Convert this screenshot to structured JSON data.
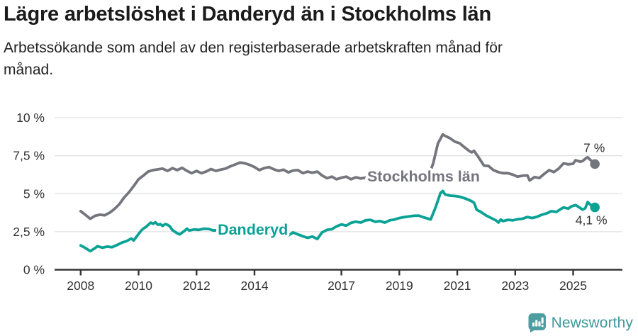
{
  "chart_data": {
    "type": "line",
    "title": "Lägre arbetslöshet i Danderyd än i Stockholms län",
    "subtitle": "Arbetssökande som andel av den registerbaserade arbetskraften månad för månad.",
    "unit": "%",
    "grid": true,
    "legend_position": "inline",
    "x_axis": {
      "range": [
        2007.1,
        2026.7
      ],
      "tick_values": [
        2008,
        2010,
        2012,
        2014,
        2017,
        2019,
        2021,
        2023,
        2025
      ],
      "tick_labels": [
        "2008",
        "2010",
        "2012",
        "2014",
        "2017",
        "2019",
        "2021",
        "2023",
        "2025"
      ]
    },
    "y_axis": {
      "range": [
        0,
        10
      ],
      "tick_values": [
        0,
        2.5,
        5,
        7.5,
        10
      ],
      "tick_labels": [
        "0 %",
        "2,5 %",
        "5 %",
        "7,5 %",
        "10 %"
      ]
    },
    "colors": {
      "axis_text": "#333333",
      "gridline": "#e0e0e0",
      "axis_line": "#333333"
    },
    "series": [
      {
        "name": "Stockholms län",
        "color": "#75757e",
        "end_label": "7 %",
        "end_label_offset": [
          -1,
          -17
        ],
        "name_label_at": {
          "x": 2017.89,
          "y": 5.8
        },
        "points": [
          [
            2008.0,
            3.85
          ],
          [
            2008.17,
            3.6
          ],
          [
            2008.33,
            3.35
          ],
          [
            2008.5,
            3.55
          ],
          [
            2008.67,
            3.62
          ],
          [
            2008.83,
            3.58
          ],
          [
            2009.0,
            3.75
          ],
          [
            2009.17,
            4.0
          ],
          [
            2009.33,
            4.3
          ],
          [
            2009.5,
            4.75
          ],
          [
            2009.67,
            5.1
          ],
          [
            2009.83,
            5.5
          ],
          [
            2010.0,
            5.95
          ],
          [
            2010.17,
            6.2
          ],
          [
            2010.33,
            6.45
          ],
          [
            2010.5,
            6.55
          ],
          [
            2010.67,
            6.6
          ],
          [
            2010.83,
            6.65
          ],
          [
            2011.0,
            6.5
          ],
          [
            2011.17,
            6.68
          ],
          [
            2011.33,
            6.55
          ],
          [
            2011.5,
            6.7
          ],
          [
            2011.67,
            6.5
          ],
          [
            2011.83,
            6.35
          ],
          [
            2012.0,
            6.5
          ],
          [
            2012.17,
            6.35
          ],
          [
            2012.33,
            6.45
          ],
          [
            2012.5,
            6.62
          ],
          [
            2012.67,
            6.5
          ],
          [
            2012.83,
            6.58
          ],
          [
            2013.0,
            6.65
          ],
          [
            2013.17,
            6.8
          ],
          [
            2013.33,
            6.92
          ],
          [
            2013.5,
            7.05
          ],
          [
            2013.67,
            7.0
          ],
          [
            2013.83,
            6.9
          ],
          [
            2014.0,
            6.75
          ],
          [
            2014.17,
            6.55
          ],
          [
            2014.33,
            6.68
          ],
          [
            2014.5,
            6.75
          ],
          [
            2014.67,
            6.6
          ],
          [
            2014.83,
            6.5
          ],
          [
            2015.0,
            6.58
          ],
          [
            2015.17,
            6.4
          ],
          [
            2015.33,
            6.52
          ],
          [
            2015.5,
            6.55
          ],
          [
            2015.67,
            6.35
          ],
          [
            2015.83,
            6.45
          ],
          [
            2016.0,
            6.38
          ],
          [
            2016.17,
            6.45
          ],
          [
            2016.33,
            6.2
          ],
          [
            2016.5,
            6.02
          ],
          [
            2016.67,
            6.12
          ],
          [
            2016.83,
            5.95
          ],
          [
            2017.0,
            6.05
          ],
          [
            2017.17,
            6.12
          ],
          [
            2017.33,
            5.95
          ],
          [
            2017.5,
            6.08
          ],
          [
            2017.67,
            6.0
          ],
          [
            2017.83,
            6.05
          ],
          [
            2018.0,
            6.0
          ],
          [
            2018.25,
            5.92
          ],
          [
            2018.5,
            5.95
          ],
          [
            2018.75,
            5.9
          ],
          [
            2019.0,
            5.92
          ],
          [
            2019.25,
            5.85
          ],
          [
            2019.5,
            5.9
          ],
          [
            2019.75,
            5.98
          ],
          [
            2020.0,
            6.1
          ],
          [
            2020.17,
            7.0
          ],
          [
            2020.33,
            8.3
          ],
          [
            2020.5,
            8.9
          ],
          [
            2020.58,
            8.8
          ],
          [
            2020.75,
            8.65
          ],
          [
            2020.92,
            8.42
          ],
          [
            2021.08,
            8.32
          ],
          [
            2021.25,
            8.05
          ],
          [
            2021.42,
            7.8
          ],
          [
            2021.5,
            7.72
          ],
          [
            2021.58,
            7.82
          ],
          [
            2021.75,
            7.35
          ],
          [
            2021.92,
            6.85
          ],
          [
            2022.08,
            6.82
          ],
          [
            2022.25,
            6.55
          ],
          [
            2022.42,
            6.42
          ],
          [
            2022.58,
            6.35
          ],
          [
            2022.75,
            6.35
          ],
          [
            2022.92,
            6.25
          ],
          [
            2023.08,
            6.12
          ],
          [
            2023.25,
            6.18
          ],
          [
            2023.42,
            6.2
          ],
          [
            2023.5,
            5.87
          ],
          [
            2023.67,
            6.1
          ],
          [
            2023.83,
            6.03
          ],
          [
            2024.0,
            6.3
          ],
          [
            2024.17,
            6.55
          ],
          [
            2024.33,
            6.42
          ],
          [
            2024.5,
            6.65
          ],
          [
            2024.67,
            7.0
          ],
          [
            2024.83,
            6.93
          ],
          [
            2025.0,
            6.97
          ],
          [
            2025.08,
            7.2
          ],
          [
            2025.25,
            7.1
          ],
          [
            2025.33,
            7.15
          ],
          [
            2025.42,
            7.3
          ],
          [
            2025.5,
            7.4
          ],
          [
            2025.58,
            7.25
          ],
          [
            2025.75,
            6.95
          ]
        ]
      },
      {
        "name": "Danderyd",
        "color": "#0ba296",
        "end_label": "4,1 %",
        "end_label_offset": [
          -5,
          24
        ],
        "name_label_at": {
          "x": 2012.73,
          "y": 2.31
        },
        "points": [
          [
            2008.0,
            1.6
          ],
          [
            2008.17,
            1.42
          ],
          [
            2008.33,
            1.22
          ],
          [
            2008.5,
            1.42
          ],
          [
            2008.58,
            1.55
          ],
          [
            2008.75,
            1.45
          ],
          [
            2008.92,
            1.52
          ],
          [
            2009.08,
            1.48
          ],
          [
            2009.25,
            1.62
          ],
          [
            2009.42,
            1.78
          ],
          [
            2009.58,
            1.88
          ],
          [
            2009.75,
            2.05
          ],
          [
            2009.83,
            1.92
          ],
          [
            2009.92,
            2.15
          ],
          [
            2010.08,
            2.55
          ],
          [
            2010.17,
            2.72
          ],
          [
            2010.25,
            2.8
          ],
          [
            2010.33,
            2.95
          ],
          [
            2010.42,
            3.1
          ],
          [
            2010.5,
            3.02
          ],
          [
            2010.58,
            3.12
          ],
          [
            2010.67,
            2.95
          ],
          [
            2010.75,
            3.0
          ],
          [
            2010.83,
            2.88
          ],
          [
            2010.92,
            3.0
          ],
          [
            2011.0,
            2.95
          ],
          [
            2011.08,
            2.85
          ],
          [
            2011.17,
            2.6
          ],
          [
            2011.33,
            2.4
          ],
          [
            2011.42,
            2.32
          ],
          [
            2011.58,
            2.55
          ],
          [
            2011.67,
            2.7
          ],
          [
            2011.75,
            2.58
          ],
          [
            2011.92,
            2.65
          ],
          [
            2012.08,
            2.62
          ],
          [
            2012.25,
            2.7
          ],
          [
            2012.42,
            2.68
          ],
          [
            2012.58,
            2.58
          ],
          [
            2012.83,
            2.62
          ],
          [
            2013.08,
            2.68
          ],
          [
            2013.33,
            2.7
          ],
          [
            2013.58,
            2.6
          ],
          [
            2013.83,
            2.55
          ],
          [
            2014.08,
            2.6
          ],
          [
            2014.33,
            2.52
          ],
          [
            2014.58,
            2.45
          ],
          [
            2014.83,
            2.42
          ],
          [
            2015.0,
            2.47
          ],
          [
            2015.17,
            2.25
          ],
          [
            2015.33,
            2.45
          ],
          [
            2015.5,
            2.32
          ],
          [
            2015.67,
            2.2
          ],
          [
            2015.83,
            2.1
          ],
          [
            2016.0,
            2.18
          ],
          [
            2016.17,
            2.02
          ],
          [
            2016.33,
            2.45
          ],
          [
            2016.5,
            2.62
          ],
          [
            2016.67,
            2.66
          ],
          [
            2016.83,
            2.85
          ],
          [
            2017.0,
            2.98
          ],
          [
            2017.17,
            2.9
          ],
          [
            2017.33,
            3.08
          ],
          [
            2017.5,
            3.16
          ],
          [
            2017.67,
            3.1
          ],
          [
            2017.83,
            3.25
          ],
          [
            2018.0,
            3.28
          ],
          [
            2018.17,
            3.15
          ],
          [
            2018.33,
            3.2
          ],
          [
            2018.5,
            3.1
          ],
          [
            2018.67,
            3.25
          ],
          [
            2018.83,
            3.3
          ],
          [
            2019.0,
            3.4
          ],
          [
            2019.17,
            3.46
          ],
          [
            2019.33,
            3.5
          ],
          [
            2019.5,
            3.55
          ],
          [
            2019.67,
            3.56
          ],
          [
            2019.83,
            3.45
          ],
          [
            2020.0,
            3.35
          ],
          [
            2020.08,
            3.3
          ],
          [
            2020.25,
            4.1
          ],
          [
            2020.42,
            5.05
          ],
          [
            2020.5,
            5.18
          ],
          [
            2020.58,
            4.95
          ],
          [
            2020.75,
            4.87
          ],
          [
            2020.92,
            4.85
          ],
          [
            2021.08,
            4.8
          ],
          [
            2021.25,
            4.7
          ],
          [
            2021.42,
            4.58
          ],
          [
            2021.5,
            4.5
          ],
          [
            2021.58,
            4.4
          ],
          [
            2021.67,
            3.95
          ],
          [
            2021.83,
            3.78
          ],
          [
            2022.0,
            3.56
          ],
          [
            2022.17,
            3.4
          ],
          [
            2022.33,
            3.25
          ],
          [
            2022.42,
            3.1
          ],
          [
            2022.5,
            3.3
          ],
          [
            2022.58,
            3.2
          ],
          [
            2022.75,
            3.28
          ],
          [
            2022.92,
            3.25
          ],
          [
            2023.08,
            3.32
          ],
          [
            2023.25,
            3.35
          ],
          [
            2023.42,
            3.47
          ],
          [
            2023.58,
            3.4
          ],
          [
            2023.75,
            3.48
          ],
          [
            2023.92,
            3.62
          ],
          [
            2024.08,
            3.7
          ],
          [
            2024.25,
            3.85
          ],
          [
            2024.42,
            3.8
          ],
          [
            2024.58,
            4.0
          ],
          [
            2024.67,
            4.1
          ],
          [
            2024.83,
            4.02
          ],
          [
            2024.92,
            4.15
          ],
          [
            2025.08,
            4.25
          ],
          [
            2025.17,
            4.15
          ],
          [
            2025.33,
            3.95
          ],
          [
            2025.42,
            4.05
          ],
          [
            2025.5,
            4.45
          ],
          [
            2025.58,
            4.3
          ],
          [
            2025.75,
            4.1
          ]
        ]
      }
    ]
  },
  "footer": {
    "brand": "Newsworthy",
    "icon": "newsworthy-speech-bubble-chart-icon",
    "icon_color": "#4d9ea0",
    "brand_color": "#3e979a"
  }
}
